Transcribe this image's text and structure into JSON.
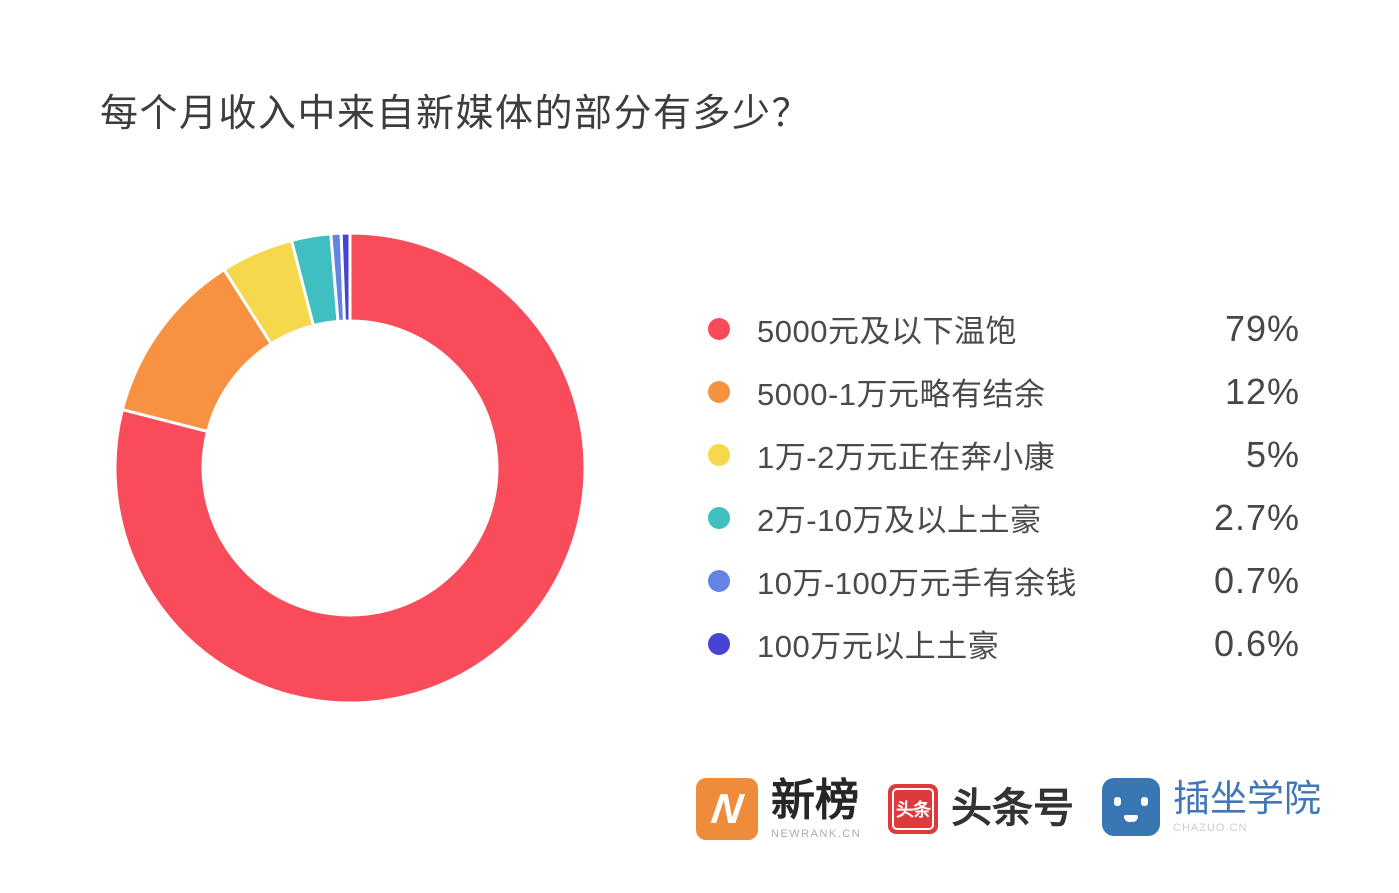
{
  "title": "每个月收入中来自新媒体的部分有多少？",
  "chart_data": {
    "type": "pie",
    "subtype": "donut",
    "title": "每个月收入中来自新媒体的部分有多少？",
    "start_angle_deg": 0,
    "direction": "clockwise",
    "inner_radius_ratio": 0.62,
    "grid": false,
    "legend_position": "right",
    "categories": [
      "5000元及以下温饱",
      "5000-1万元略有结余",
      "1万-2万元正在奔小康",
      "2万-10万及以上土豪",
      "10万-100万元手有余钱",
      "100万元以上土豪"
    ],
    "values": [
      79,
      12,
      5,
      2.7,
      0.7,
      0.6
    ],
    "value_labels": [
      "79%",
      "12%",
      "5%",
      "2.7%",
      "0.7%",
      "0.6%"
    ],
    "colors": [
      "#F84C5B",
      "#F79242",
      "#F6D84C",
      "#3FBFC0",
      "#6484E4",
      "#4744D2"
    ],
    "segment_gap_color": "#FFFFFF"
  },
  "footer": {
    "logos": [
      {
        "name": "新榜",
        "sub": "NEWRANK.CN",
        "icon": "newrank-n-icon",
        "icon_color": "#EE8C3C",
        "icon_glyph": "N"
      },
      {
        "name": "头条号",
        "sub": "",
        "icon": "toutiao-icon",
        "icon_color": "#DE3A3E",
        "icon_glyph": "头条"
      },
      {
        "name": "插坐学院",
        "sub": "CHAZUO.CN",
        "icon": "chazuo-face-icon",
        "icon_color": "#3876B4",
        "icon_glyph": ""
      }
    ]
  }
}
